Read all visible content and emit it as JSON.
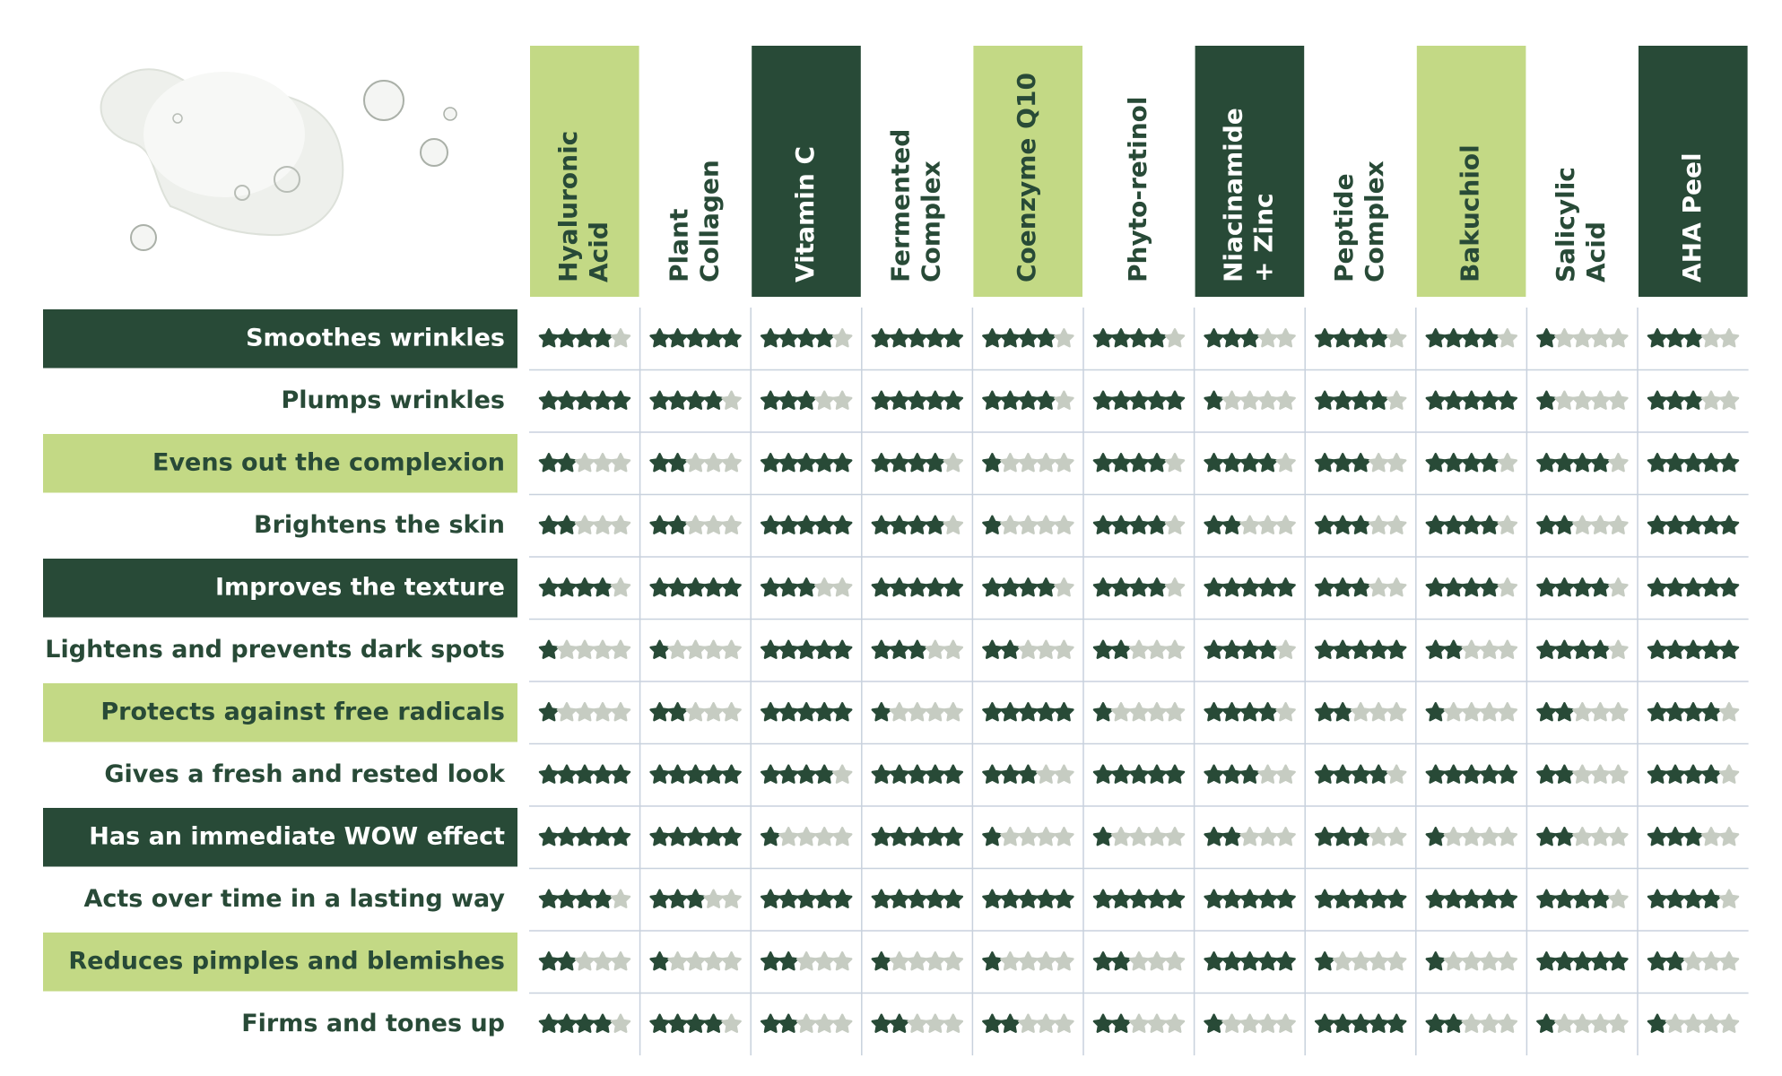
{
  "columns": [
    [
      "Hyaluronic",
      "Acid"
    ],
    [
      "Plant",
      "Collagen"
    ],
    [
      "Vitamin C"
    ],
    [
      "Fermented",
      "Complex"
    ],
    [
      "Coenzyme Q10"
    ],
    [
      "Phyto-retinol"
    ],
    [
      "Niacinamide",
      "+ Zinc"
    ],
    [
      "Peptide",
      "Complex"
    ],
    [
      "Bakuchiol"
    ],
    [
      "Salicylic",
      "Acid"
    ],
    [
      "AHA Peel"
    ]
  ],
  "rows": [
    {
      "label": "Smoothes wrinkles",
      "ratings": [
        4,
        5,
        4,
        5,
        4,
        4,
        3,
        4,
        4,
        1,
        3
      ]
    },
    {
      "label": "Plumps wrinkles",
      "ratings": [
        5,
        4,
        3,
        5,
        4,
        5,
        1,
        4,
        5,
        1,
        3
      ]
    },
    {
      "label": "Evens out the complexion",
      "ratings": [
        2,
        2,
        5,
        4,
        1,
        4,
        4,
        3,
        4,
        4,
        5
      ]
    },
    {
      "label": "Brightens the skin",
      "ratings": [
        2,
        2,
        5,
        4,
        1,
        4,
        2,
        3,
        4,
        2,
        5
      ]
    },
    {
      "label": "Improves the texture",
      "ratings": [
        4,
        5,
        3,
        5,
        4,
        4,
        5,
        3,
        4,
        4,
        5
      ]
    },
    {
      "label": "Lightens and prevents dark spots",
      "ratings": [
        1,
        1,
        5,
        3,
        2,
        2,
        4,
        5,
        2,
        4,
        5
      ]
    },
    {
      "label": "Protects against free radicals",
      "ratings": [
        1,
        2,
        5,
        1,
        5,
        1,
        4,
        2,
        1,
        2,
        4
      ]
    },
    {
      "label": "Gives a fresh and rested look",
      "ratings": [
        5,
        5,
        4,
        5,
        3,
        5,
        3,
        4,
        5,
        2,
        4
      ]
    },
    {
      "label": "Has an immediate WOW effect",
      "ratings": [
        5,
        5,
        1,
        5,
        1,
        1,
        2,
        3,
        1,
        2,
        3
      ]
    },
    {
      "label": "Acts over time in a lasting way",
      "ratings": [
        4,
        3,
        5,
        5,
        5,
        5,
        5,
        5,
        5,
        4,
        4
      ]
    },
    {
      "label": "Reduces pimples and blemishes",
      "ratings": [
        2,
        1,
        2,
        1,
        1,
        2,
        5,
        1,
        1,
        5,
        2
      ]
    },
    {
      "label": "Firms and tones up",
      "ratings": [
        4,
        4,
        2,
        2,
        2,
        2,
        1,
        5,
        2,
        1,
        1
      ]
    }
  ]
}
